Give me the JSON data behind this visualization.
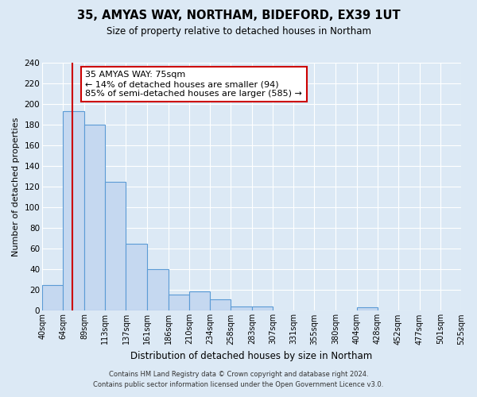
{
  "title": "35, AMYAS WAY, NORTHAM, BIDEFORD, EX39 1UT",
  "subtitle": "Size of property relative to detached houses in Northam",
  "xlabel": "Distribution of detached houses by size in Northam",
  "ylabel": "Number of detached properties",
  "bin_edges": [
    40,
    64,
    89,
    113,
    137,
    161,
    186,
    210,
    234,
    258,
    283,
    307,
    331,
    355,
    380,
    404,
    428,
    452,
    477,
    501,
    525
  ],
  "bar_heights": [
    25,
    193,
    180,
    125,
    65,
    40,
    16,
    19,
    11,
    4,
    4,
    0,
    0,
    0,
    0,
    3,
    0,
    0,
    0,
    0
  ],
  "tick_labels": [
    "40sqm",
    "64sqm",
    "89sqm",
    "113sqm",
    "137sqm",
    "161sqm",
    "186sqm",
    "210sqm",
    "234sqm",
    "258sqm",
    "283sqm",
    "307sqm",
    "331sqm",
    "355sqm",
    "380sqm",
    "404sqm",
    "428sqm",
    "452sqm",
    "477sqm",
    "501sqm",
    "525sqm"
  ],
  "bar_color": "#c5d8f0",
  "bar_edge_color": "#5b9bd5",
  "property_line_x": 75,
  "property_line_color": "#cc0000",
  "annotation_title": "35 AMYAS WAY: 75sqm",
  "annotation_line1": "← 14% of detached houses are smaller (94)",
  "annotation_line2": "85% of semi-detached houses are larger (585) →",
  "annotation_box_facecolor": "#ffffff",
  "annotation_border_color": "#cc0000",
  "ylim": [
    0,
    240
  ],
  "yticks": [
    0,
    20,
    40,
    60,
    80,
    100,
    120,
    140,
    160,
    180,
    200,
    220,
    240
  ],
  "footer_line1": "Contains HM Land Registry data © Crown copyright and database right 2024.",
  "footer_line2": "Contains public sector information licensed under the Open Government Licence v3.0.",
  "bg_color": "#dce9f5",
  "plot_bg_color": "#dce9f5",
  "grid_color": "#ffffff",
  "title_fontsize": 10.5,
  "subtitle_fontsize": 8.5,
  "xlabel_fontsize": 8.5,
  "ylabel_fontsize": 8,
  "tick_fontsize": 7,
  "annotation_fontsize": 8,
  "footer_fontsize": 6
}
